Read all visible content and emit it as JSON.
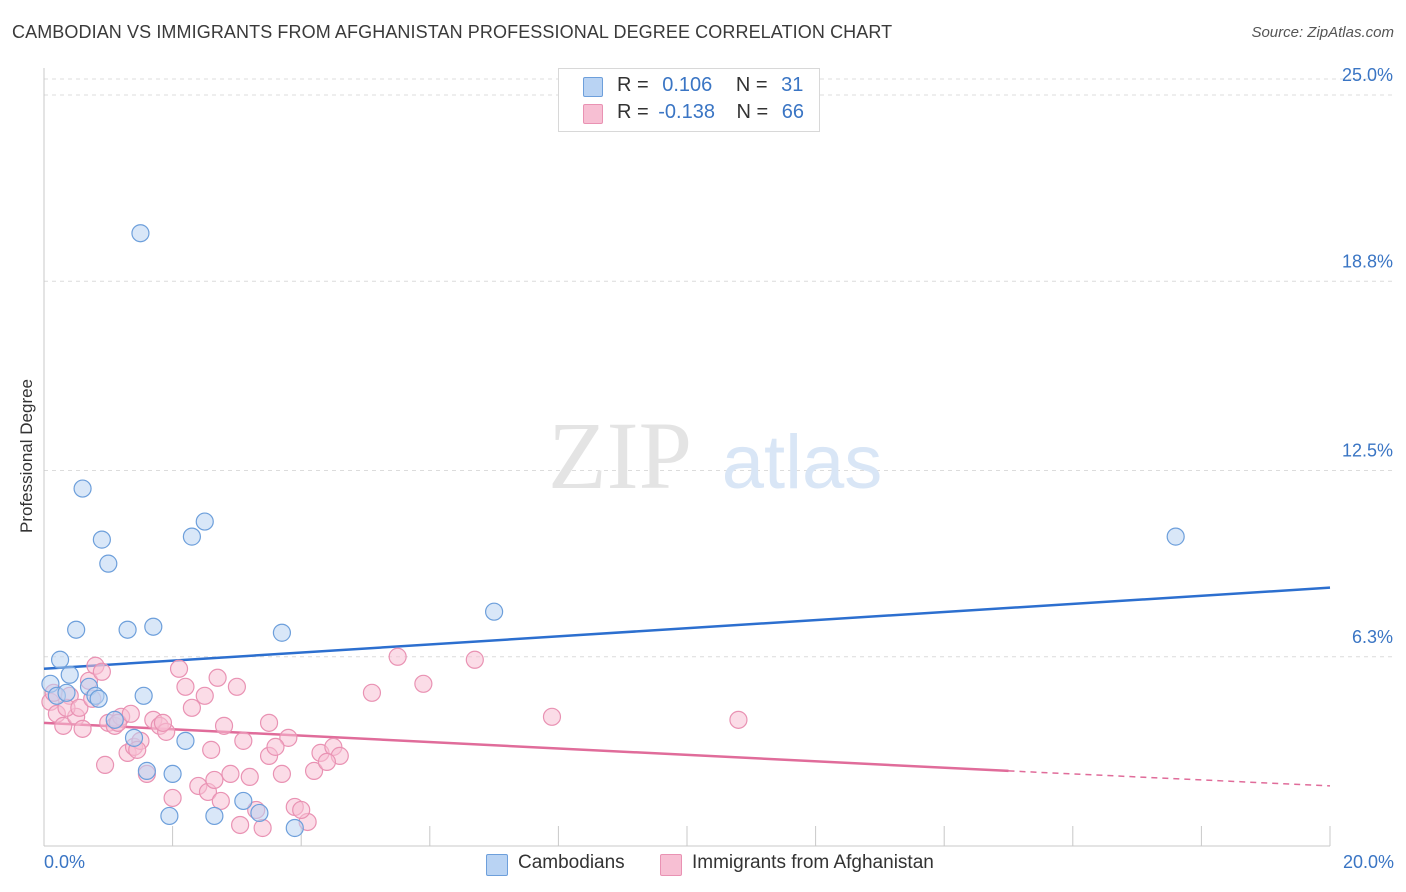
{
  "title": "CAMBODIAN VS IMMIGRANTS FROM AFGHANISTAN PROFESSIONAL DEGREE CORRELATION CHART",
  "source": "Source: ZipAtlas.com",
  "watermark": {
    "zip": "ZIP",
    "atlas": "atlas"
  },
  "legend": {
    "row1": {
      "r_label": "R =",
      "r_value": "0.106",
      "n_label": "N =",
      "n_value": "31"
    },
    "row2": {
      "r_label": "R =",
      "r_value": "-0.138",
      "n_label": "N =",
      "n_value": "66"
    }
  },
  "bottom_legend": {
    "series1": "Cambodians",
    "series2": "Immigrants from Afghanistan"
  },
  "colors": {
    "blue_fill": "#b9d3f3",
    "blue_stroke": "#6d9fdb",
    "blue_line": "#2c6fcf",
    "pink_fill": "#f7bfd3",
    "pink_stroke": "#e992b3",
    "pink_line": "#e06c9a",
    "tick_text": "#3a75c4",
    "grid": "#dcdcdc"
  },
  "chart_data": {
    "type": "scatter",
    "ylabel": "Professional Degree",
    "xlabel": "",
    "xlim": [
      0,
      20
    ],
    "ylim": [
      0,
      26.1
    ],
    "x_tick_labels": {
      "left": "0.0%",
      "right": "20.0%"
    },
    "y_ticks": [
      {
        "value": 6.3,
        "label": "6.3%"
      },
      {
        "value": 12.5,
        "label": "12.5%"
      },
      {
        "value": 18.8,
        "label": "18.8%"
      },
      {
        "value": 25.0,
        "label": "25.0%"
      }
    ],
    "grid": true,
    "legend_position": "top-center",
    "series": [
      {
        "name": "Cambodians",
        "points": [
          [
            1.5,
            20.4
          ],
          [
            0.6,
            11.9
          ],
          [
            0.9,
            10.2
          ],
          [
            1.0,
            9.4
          ],
          [
            2.5,
            10.8
          ],
          [
            2.3,
            10.3
          ],
          [
            0.5,
            7.2
          ],
          [
            1.3,
            7.2
          ],
          [
            1.7,
            7.3
          ],
          [
            3.7,
            7.1
          ],
          [
            7.0,
            7.8
          ],
          [
            17.6,
            10.3
          ],
          [
            0.25,
            6.2
          ],
          [
            0.4,
            5.7
          ],
          [
            0.1,
            5.4
          ],
          [
            0.2,
            5.0
          ],
          [
            0.35,
            5.1
          ],
          [
            0.7,
            5.3
          ],
          [
            0.8,
            5.0
          ],
          [
            0.85,
            4.9
          ],
          [
            1.55,
            5.0
          ],
          [
            1.1,
            4.2
          ],
          [
            1.4,
            3.6
          ],
          [
            2.2,
            3.5
          ],
          [
            1.6,
            2.5
          ],
          [
            2.0,
            2.4
          ],
          [
            1.95,
            1.0
          ],
          [
            3.1,
            1.5
          ],
          [
            2.65,
            1.0
          ],
          [
            3.35,
            1.1
          ],
          [
            3.9,
            0.6
          ]
        ]
      },
      {
        "name": "Immigrants from Afghanistan",
        "points": [
          [
            0.1,
            4.8
          ],
          [
            0.2,
            4.4
          ],
          [
            0.3,
            4.0
          ],
          [
            0.15,
            5.1
          ],
          [
            0.4,
            5.0
          ],
          [
            0.5,
            4.3
          ],
          [
            0.6,
            3.9
          ],
          [
            0.7,
            5.5
          ],
          [
            0.8,
            6.0
          ],
          [
            0.9,
            5.8
          ],
          [
            1.0,
            4.1
          ],
          [
            1.1,
            4.0
          ],
          [
            1.2,
            4.3
          ],
          [
            1.3,
            3.1
          ],
          [
            1.4,
            3.3
          ],
          [
            1.5,
            3.5
          ],
          [
            1.6,
            2.4
          ],
          [
            1.7,
            4.2
          ],
          [
            1.8,
            4.0
          ],
          [
            1.9,
            3.8
          ],
          [
            2.1,
            5.9
          ],
          [
            2.2,
            5.3
          ],
          [
            2.3,
            4.6
          ],
          [
            2.5,
            5.0
          ],
          [
            2.6,
            3.2
          ],
          [
            2.7,
            5.6
          ],
          [
            2.8,
            4.0
          ],
          [
            2.9,
            2.4
          ],
          [
            3.0,
            5.3
          ],
          [
            3.1,
            3.5
          ],
          [
            3.2,
            2.3
          ],
          [
            3.3,
            1.2
          ],
          [
            3.5,
            3.0
          ],
          [
            3.5,
            4.1
          ],
          [
            3.7,
            2.4
          ],
          [
            3.8,
            3.6
          ],
          [
            3.9,
            1.3
          ],
          [
            4.1,
            0.8
          ],
          [
            4.3,
            3.1
          ],
          [
            4.5,
            3.3
          ],
          [
            4.6,
            3.0
          ],
          [
            5.1,
            5.1
          ],
          [
            5.5,
            6.3
          ],
          [
            5.9,
            5.4
          ],
          [
            6.7,
            6.2
          ],
          [
            7.9,
            4.3
          ],
          [
            10.8,
            4.2
          ],
          [
            0.35,
            4.6
          ],
          [
            0.55,
            4.6
          ],
          [
            0.75,
            4.9
          ],
          [
            0.95,
            2.7
          ],
          [
            1.15,
            4.1
          ],
          [
            1.35,
            4.4
          ],
          [
            1.45,
            3.2
          ],
          [
            1.85,
            4.1
          ],
          [
            2.0,
            1.6
          ],
          [
            2.4,
            2.0
          ],
          [
            2.55,
            1.8
          ],
          [
            2.65,
            2.2
          ],
          [
            2.75,
            1.5
          ],
          [
            3.05,
            0.7
          ],
          [
            3.4,
            0.6
          ],
          [
            3.6,
            3.3
          ],
          [
            4.0,
            1.2
          ],
          [
            4.2,
            2.5
          ],
          [
            4.4,
            2.8
          ]
        ]
      }
    ],
    "trend_lines": [
      {
        "series": "Cambodians",
        "x": [
          0,
          20
        ],
        "y": [
          5.9,
          8.6
        ]
      },
      {
        "series": "Immigrants from Afghanistan",
        "x": [
          0,
          15
        ],
        "y": [
          4.1,
          2.5
        ],
        "dashed_to": [
          20,
          2.0
        ]
      }
    ]
  }
}
